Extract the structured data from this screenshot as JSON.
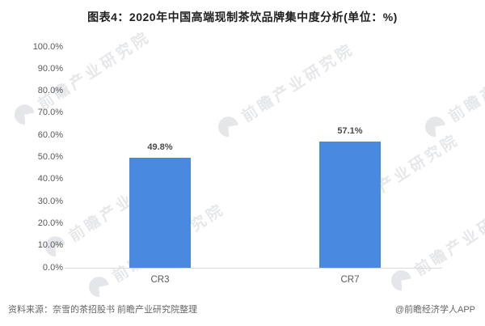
{
  "title": "图表4：2020年中国高端现制茶饮品牌集中度分析(单位：%)",
  "chart_data": {
    "type": "bar",
    "title": "图表4：2020年中国高端现制茶饮品牌集中度分析(单位：%)",
    "unit": "%",
    "categories": [
      "CR3",
      "CR7"
    ],
    "values": [
      49.8,
      57.1
    ],
    "value_labels": [
      "49.8%",
      "57.1%"
    ],
    "xlabel": "",
    "ylabel": "",
    "ylim": [
      0,
      100
    ],
    "ytick_interval": 10,
    "ytick_labels": [
      "100.0%",
      "90.0%",
      "80.0%",
      "70.0%",
      "60.0%",
      "50.0%",
      "40.0%",
      "30.0%",
      "20.0%",
      "10.0%",
      "0.0%"
    ],
    "grid": false,
    "legend_position": "none",
    "bar_color": "#4a89e0",
    "axis_line_color": "#d9d9d9"
  },
  "footer": {
    "source": "资料来源：奈雪的茶招股书 前瞻产业研究院整理",
    "credit": "@前瞻经济学人APP"
  },
  "watermark": {
    "text": "前瞻产业研究院"
  }
}
